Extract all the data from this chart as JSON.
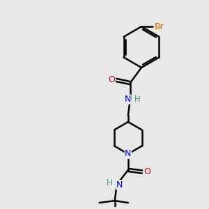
{
  "background_color": "#e8e8e8",
  "atom_colors": {
    "C": "#000000",
    "N": "#0000cc",
    "O": "#cc0000",
    "Br": "#cc6600",
    "H": "#4a9090"
  },
  "bond_color": "#000000",
  "bond_width": 1.8,
  "figsize": [
    3.0,
    3.0
  ],
  "dpi": 100
}
